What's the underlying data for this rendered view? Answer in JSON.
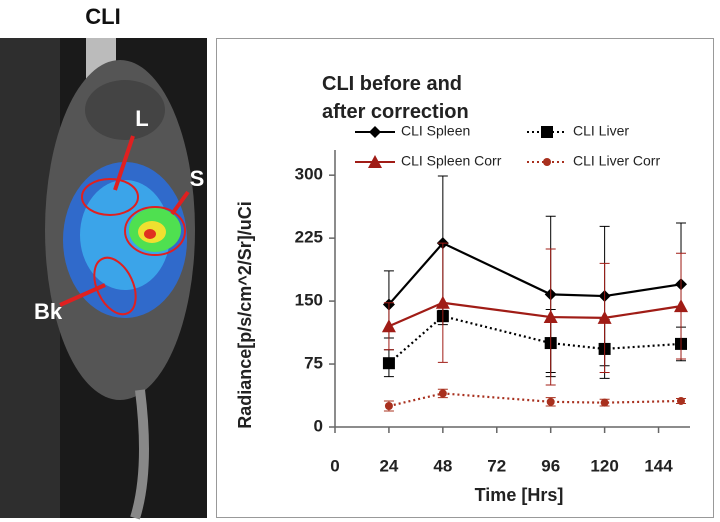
{
  "image_panel": {
    "title": "CLI",
    "labels": [
      "L",
      "S",
      "Bk"
    ]
  },
  "chart_data": {
    "type": "line",
    "title": "CLI before and after correction",
    "x_label": "Time [Hrs]",
    "y_label": "Radiance[p/s/cm^2/Sr]/uCi",
    "x": [
      24,
      48,
      96,
      120,
      154
    ],
    "xlim": [
      0,
      158
    ],
    "xticks": [
      0,
      24,
      48,
      72,
      96,
      120,
      144
    ],
    "ylim": [
      0,
      330
    ],
    "yticks": [
      0,
      75,
      150,
      225,
      300
    ],
    "series": [
      {
        "name": "CLI Spleen",
        "color": "#000000",
        "marker": "diamond",
        "dash": "solid",
        "values": [
          146,
          219,
          158,
          156,
          170
        ],
        "errors": [
          40,
          80,
          93,
          83,
          73
        ]
      },
      {
        "name": "CLI Liver",
        "color": "#000000",
        "marker": "square",
        "dash": "dotted",
        "values": [
          76,
          132,
          100,
          93,
          99
        ],
        "errors": [
          16,
          10,
          40,
          35,
          20
        ]
      },
      {
        "name": "CLI Spleen Corr",
        "color": "#a01c16",
        "marker": "triangle",
        "dash": "solid",
        "values": [
          120,
          148,
          131,
          130,
          144
        ],
        "errors": [
          28,
          71,
          81,
          65,
          63
        ]
      },
      {
        "name": "CLI Liver Corr",
        "color": "#a8301e",
        "marker": "circle",
        "dash": "dotted",
        "values": [
          25,
          40,
          30,
          29,
          31
        ],
        "errors": [
          6,
          5,
          5,
          4,
          3
        ]
      }
    ]
  }
}
